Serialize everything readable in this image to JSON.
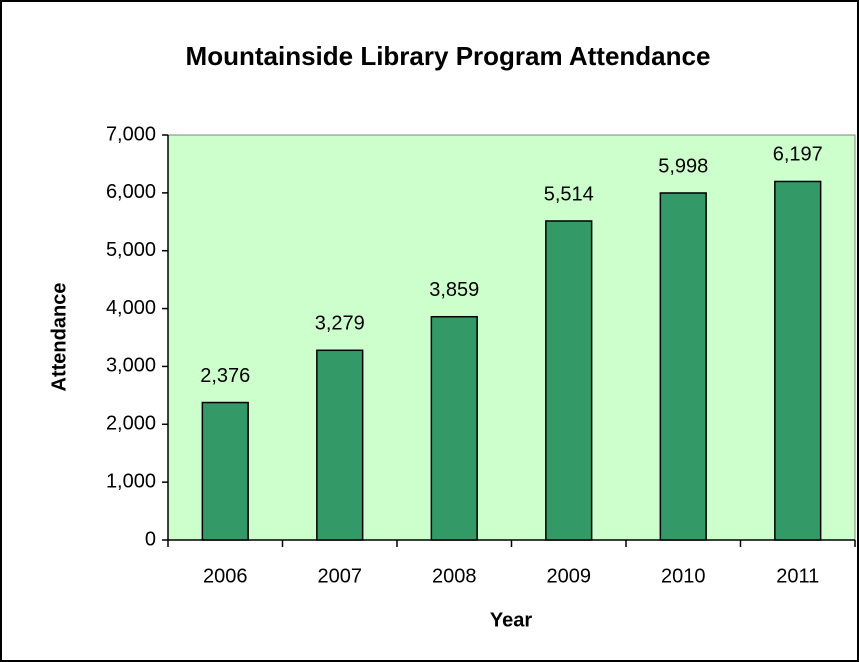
{
  "chart_data": {
    "type": "bar",
    "title": "Mountainside Library Program Attendance",
    "x_label": "Year",
    "y_label": "Attendance",
    "categories": [
      "2006",
      "2007",
      "2008",
      "2009",
      "2010",
      "2011"
    ],
    "values": [
      2376,
      3279,
      3859,
      5514,
      5998,
      6197
    ],
    "value_labels": [
      "2,376",
      "3,279",
      "3,859",
      "5,514",
      "5,998",
      "6,197"
    ],
    "color": "#339966",
    "plot_background": "#ccffcc",
    "ylim": [
      0,
      7000
    ],
    "yticks": [
      0,
      {
        "value": 1000,
        "label": "1,000"
      },
      {
        "value": 2000,
        "label": "2,000"
      },
      {
        "value": 3000,
        "label": "3,000"
      },
      {
        "value": 4000,
        "label": "4,000"
      },
      {
        "value": 5000,
        "label": "5,000"
      },
      {
        "value": 6000,
        "label": "6,000"
      },
      {
        "value": 7000,
        "label": "7,000"
      }
    ],
    "grid": false
  }
}
